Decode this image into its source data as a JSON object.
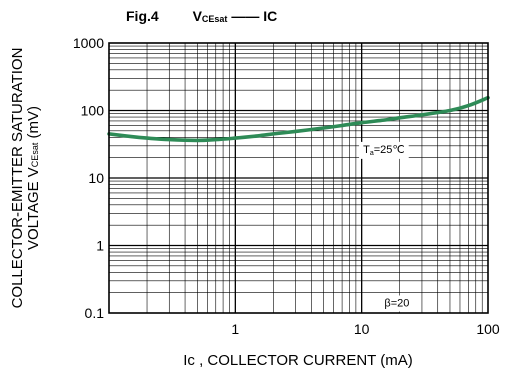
{
  "figure": {
    "label": "Fig.4",
    "param_main": "V",
    "param_sub": "CEsat",
    "dash": "——",
    "vs_main": "I",
    "vs_sub": "C"
  },
  "chart_data": {
    "type": "line",
    "title": "Fig.4  VCEsat —— Ic",
    "xlabel": "Ic , COLLECTOR CURRENT (mA)",
    "ylabel_line1": "COLLECTOR-EMITTER SATURATION",
    "ylabel_line2_main": "VOLTAGE V",
    "ylabel_line2_sub": "CEsat",
    "ylabel_line2_unit": " (mV)",
    "x_scale": "log",
    "y_scale": "log",
    "xlim": [
      0.1,
      100
    ],
    "ylim": [
      0.1,
      1000
    ],
    "x_tick_labels": [
      {
        "value": 1,
        "label": "1"
      },
      {
        "value": 10,
        "label": "10"
      },
      {
        "value": 100,
        "label": "100"
      }
    ],
    "y_tick_labels": [
      {
        "value": 0.1,
        "label": "0.1"
      },
      {
        "value": 1,
        "label": "1"
      },
      {
        "value": 10,
        "label": "10"
      },
      {
        "value": 100,
        "label": "100"
      },
      {
        "value": 1000,
        "label": "1000"
      }
    ],
    "grid": true,
    "series": [
      {
        "color": "#2e8b57",
        "x": [
          0.1,
          0.15,
          0.2,
          0.3,
          0.5,
          0.7,
          1,
          1.5,
          2,
          3,
          5,
          7,
          10,
          15,
          20,
          30,
          50,
          70,
          100
        ],
        "y": [
          45,
          41,
          39,
          37,
          36,
          37,
          39,
          42,
          45,
          49,
          55,
          60,
          66,
          72,
          78,
          86,
          100,
          118,
          155
        ]
      }
    ],
    "annotations": [
      {
        "id": "ta",
        "main": "T",
        "sub": "a",
        "rest": "=25℃",
        "x": 15,
        "y": 27
      },
      {
        "id": "beta",
        "text": "β=20",
        "x": 19,
        "y": 0.143
      }
    ]
  }
}
